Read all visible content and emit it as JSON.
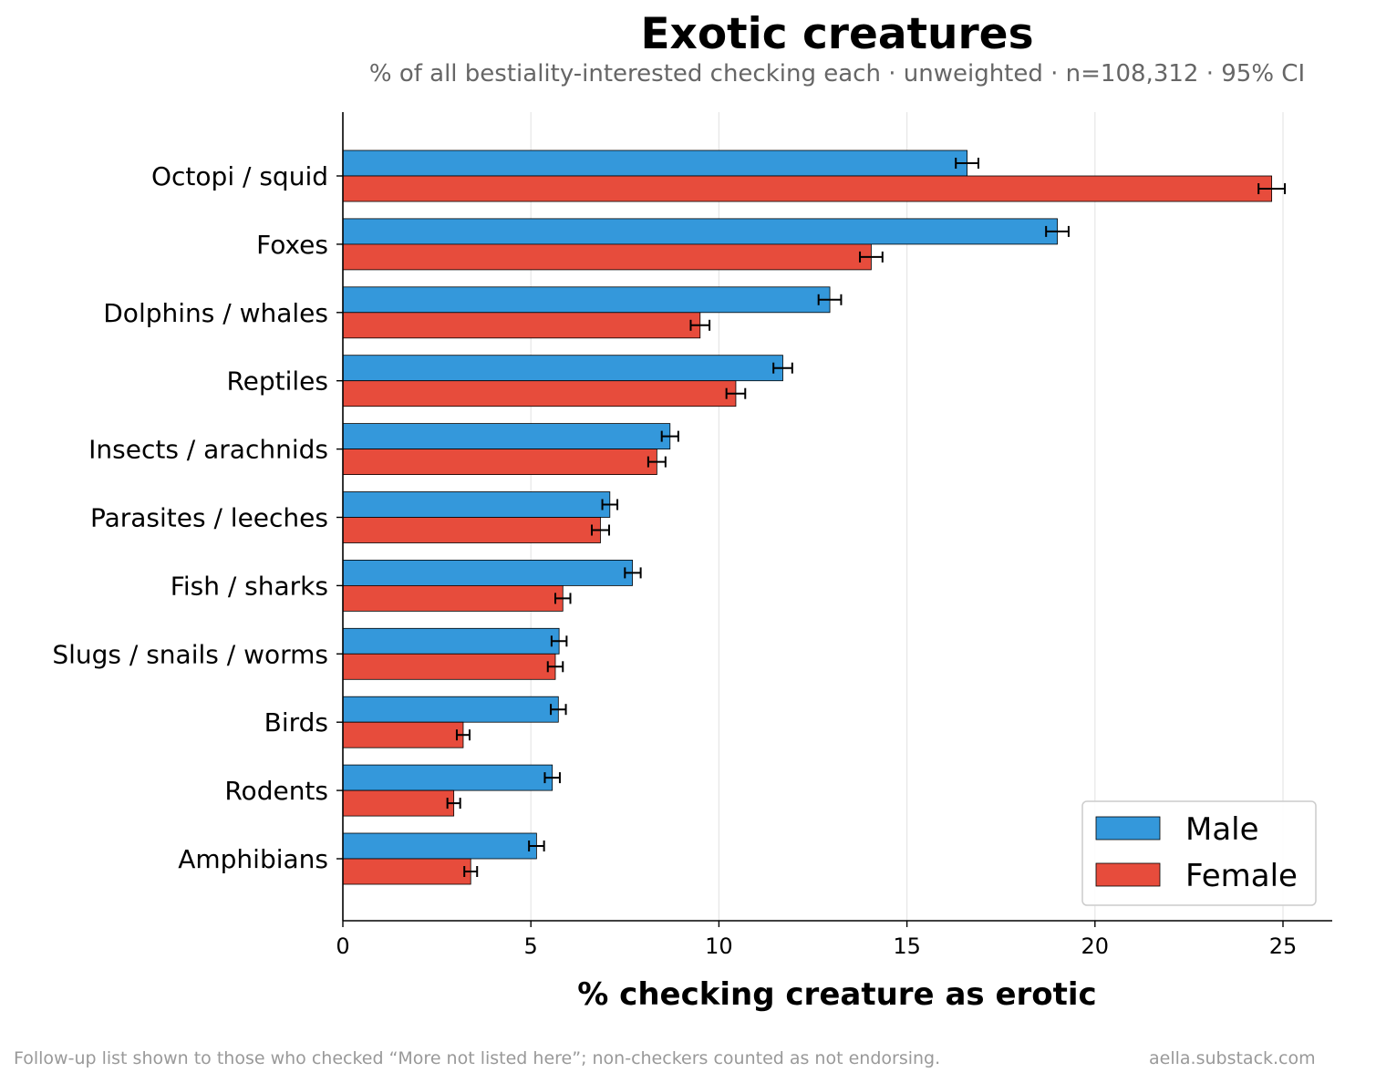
{
  "chart_data": {
    "type": "bar",
    "orientation": "horizontal",
    "title": "Exotic creatures",
    "subtitle": "% of all bestiality-interested checking each · unweighted · n=108,312 · 95% CI",
    "xlabel": "% checking creature as erotic",
    "ylabel": "",
    "xlim": [
      0,
      26.3
    ],
    "xticks": [
      0,
      5,
      10,
      15,
      20,
      25
    ],
    "grid": "x",
    "legend_position": "bottom-right",
    "categories": [
      "Octopi / squid",
      "Foxes",
      "Dolphins / whales",
      "Reptiles",
      "Insects / arachnids",
      "Parasites / leeches",
      "Fish / sharks",
      "Slugs / snails / worms",
      "Birds",
      "Rodents",
      "Amphibians"
    ],
    "series": [
      {
        "name": "Male",
        "color": "#3498db",
        "values": [
          16.6,
          19.0,
          12.95,
          11.7,
          8.7,
          7.1,
          7.7,
          5.75,
          5.73,
          5.57,
          5.15
        ],
        "ci_low": [
          16.3,
          18.7,
          12.65,
          11.45,
          8.48,
          6.9,
          7.5,
          5.55,
          5.53,
          5.37,
          4.95
        ],
        "ci_high": [
          16.9,
          19.3,
          13.25,
          11.95,
          8.92,
          7.3,
          7.92,
          5.95,
          5.93,
          5.77,
          5.35
        ]
      },
      {
        "name": "Female",
        "color": "#e74c3c",
        "values": [
          24.7,
          14.05,
          9.5,
          10.45,
          8.35,
          6.85,
          5.85,
          5.65,
          3.2,
          2.95,
          3.4
        ],
        "ci_low": [
          24.35,
          13.75,
          9.25,
          10.2,
          8.12,
          6.62,
          5.65,
          5.45,
          3.03,
          2.78,
          3.23
        ],
        "ci_high": [
          25.05,
          14.35,
          9.75,
          10.7,
          8.58,
          7.08,
          6.05,
          5.85,
          3.37,
          3.12,
          3.57
        ]
      }
    ]
  },
  "footnote": "Follow-up list shown to those who checked “More not listed here”; non-checkers counted as not endorsing.",
  "credit": "aella.substack.com"
}
